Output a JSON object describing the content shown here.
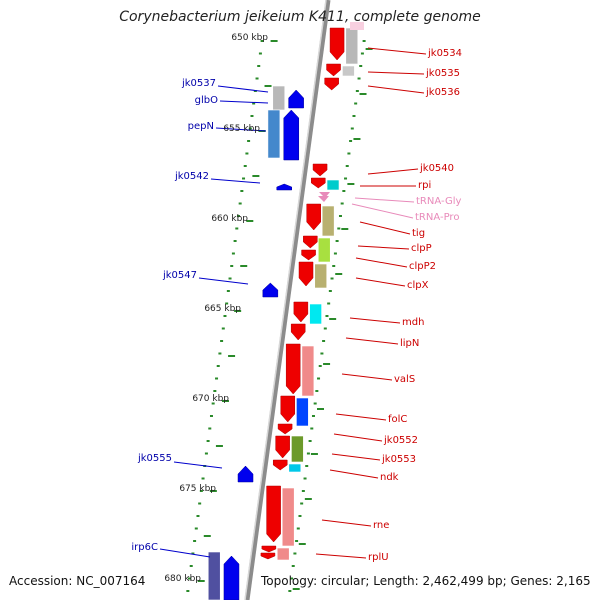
{
  "title": "Corynebacterium jeikeium K411, complete genome",
  "accession": "Accession: NC_007164",
  "summary": "Topology: circular; Length: 2,462,499 bp; Genes: 2,165",
  "colors": {
    "backbone": "#8c8c8c",
    "forward_gene": "#ee0000",
    "reverse_gene": "#0000ee",
    "label_forward": "#cc0000",
    "label_reverse": "#0000aa",
    "label_rna": "#e88aba",
    "tick": "#2a8a2a"
  },
  "position_labels": [
    "650 kbp",
    "655 kbp",
    "660 kbp",
    "665 kbp",
    "670 kbp",
    "675 kbp",
    "680 kbp"
  ],
  "genes_right": [
    {
      "name": "jk0534"
    },
    {
      "name": "jk0535"
    },
    {
      "name": "jk0536"
    },
    {
      "name": "jk0540"
    },
    {
      "name": "rpi"
    },
    {
      "name": "tRNA-Gly"
    },
    {
      "name": "tRNA-Pro"
    },
    {
      "name": "tig"
    },
    {
      "name": "clpP"
    },
    {
      "name": "clpP2"
    },
    {
      "name": "clpX"
    },
    {
      "name": "mdh"
    },
    {
      "name": "lipN"
    },
    {
      "name": "valS"
    },
    {
      "name": "folC"
    },
    {
      "name": "jk0552"
    },
    {
      "name": "jk0553"
    },
    {
      "name": "ndk"
    },
    {
      "name": "rne"
    },
    {
      "name": "rplU"
    }
  ],
  "genes_left": [
    {
      "name": "jk0537"
    },
    {
      "name": "glbO"
    },
    {
      "name": "pepN"
    },
    {
      "name": "jk0542"
    },
    {
      "name": "jk0547"
    },
    {
      "name": "jk0555"
    },
    {
      "name": "irp6C"
    }
  ]
}
